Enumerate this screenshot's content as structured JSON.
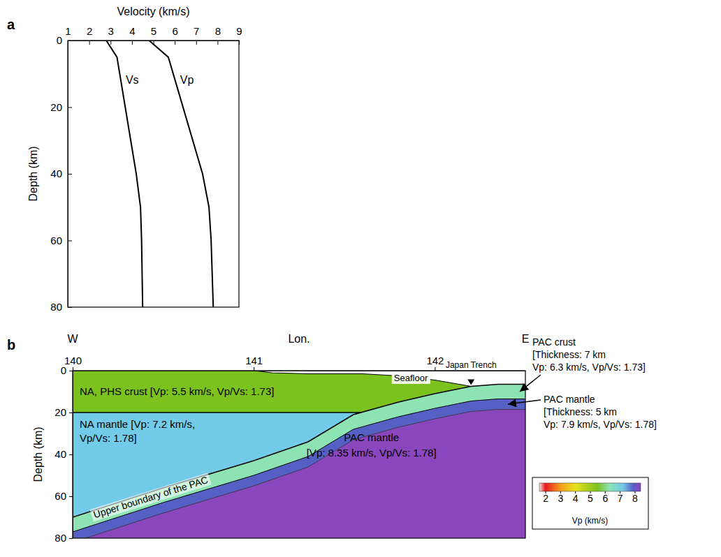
{
  "chart_data": [
    {
      "type": "line",
      "panel_label": "a",
      "orientation": "horizontal",
      "x_label": "Velocity (km/s)",
      "y_label": "Depth (km)",
      "xlim": [
        1,
        9
      ],
      "xticks": [
        1,
        2,
        3,
        4,
        5,
        6,
        7,
        8,
        9
      ],
      "ylim": [
        0,
        80
      ],
      "yticks": [
        0,
        20,
        40,
        60,
        80
      ],
      "y": [
        0,
        5,
        40,
        50,
        60,
        80
      ],
      "series": [
        {
          "name": "Vs",
          "color": "#000000",
          "values": [
            2.8,
            3.3,
            4.2,
            4.4,
            4.45,
            4.5
          ]
        },
        {
          "name": "Vp",
          "color": "#000000",
          "values": [
            4.8,
            5.7,
            7.3,
            7.6,
            7.7,
            7.8
          ]
        }
      ]
    },
    {
      "type": "cross_section",
      "panel_label": "b",
      "x_label": "Lon.",
      "x_ends": [
        "W",
        "E"
      ],
      "y_label": "Depth (km)",
      "xlim": [
        140,
        142.5
      ],
      "xticks": [
        140,
        141,
        142
      ],
      "ylim": [
        0,
        80
      ],
      "yticks": [
        0,
        20,
        40,
        60,
        80
      ],
      "seafloor": {
        "label": "Seafloor",
        "lon": [
          140,
          141,
          141.1,
          141.3,
          141.6,
          141.8,
          142,
          142.2
        ],
        "depth": [
          0,
          0,
          1,
          1.5,
          1.5,
          2.5,
          4.5,
          7.5
        ]
      },
      "trench": {
        "label": "Japan Trench",
        "lon": 142.2
      },
      "slab_top": {
        "label": "Upper boundary of the PAC",
        "lon": [
          140,
          140.5,
          141,
          141.3,
          141.55,
          141.8,
          142,
          142.2,
          142.35,
          142.5
        ],
        "depth": [
          70,
          56,
          43,
          34,
          21,
          15,
          11,
          7.5,
          6.5,
          6.5
        ]
      },
      "layers": [
        {
          "label": [
            "NA, PHS crust [Vp: 5.5 km/s, Vp/Vs: 1.73]"
          ],
          "vp": 5.5,
          "base_depth": 20
        },
        {
          "label": [
            "NA mantle [Vp: 7.2 km/s,",
            "Vp/Vs: 1.78]"
          ],
          "vp": 7.2
        },
        {
          "label": [
            "PAC crust",
            "[Thickness: 7 km",
            "Vp: 6.3 km/s, Vp/Vs: 1.73]"
          ],
          "vp": 6.3,
          "thickness": 7
        },
        {
          "label": [
            "PAC mantle",
            "[Thickness: 5 km",
            "Vp: 7.9 km/s, Vp/Vs: 1.78]"
          ],
          "vp": 7.9,
          "thickness": 5
        },
        {
          "label": [
            "PAC mantle",
            "[Vp: 8.35 km/s, Vp/Vs: 1.78]"
          ],
          "vp": 8.35
        }
      ],
      "colorbar": {
        "label": "Vp (km/s)",
        "range": [
          1.6,
          8.4
        ],
        "ticks": [
          2,
          3,
          4,
          5,
          6,
          7,
          8
        ],
        "stops": [
          1.6,
          2,
          3,
          4,
          5.5,
          6.3,
          7.2,
          7.9,
          8.35,
          8.4
        ],
        "colors": [
          "#f6e4e4",
          "#e41a1c",
          "#f39c1f",
          "#e8e21c",
          "#7cc21e",
          "#8ee3b5",
          "#72cbe8",
          "#5560c4",
          "#8a46bd",
          "#8a46bd"
        ]
      }
    }
  ]
}
